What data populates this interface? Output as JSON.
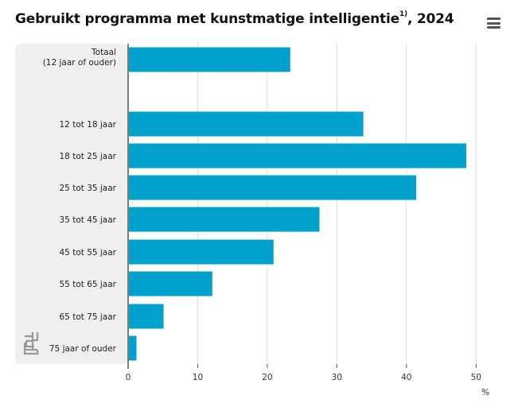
{
  "header": {
    "title": "Gebruikt programma met kunstmatige intelligentie",
    "footnote_mark": "1)",
    "title_suffix": ", 2024",
    "menu_icon": "hamburger-menu-icon"
  },
  "branding": {
    "logo_icon": "cbs-logo-icon"
  },
  "colors": {
    "bar": "#00a1cd",
    "label_panel": "#efefef",
    "grid": "#dcdcdc",
    "axis": "#555555"
  },
  "chart_data": {
    "type": "bar",
    "orientation": "horizontal",
    "categories": [
      [
        "Totaal",
        "(12 jaar of ouder)"
      ],
      [
        "12 tot 18 jaar"
      ],
      [
        "18 tot 25 jaar"
      ],
      [
        "25 tot 35 jaar"
      ],
      [
        "35 tot 45 jaar"
      ],
      [
        "45 tot 55 jaar"
      ],
      [
        "55 tot 65 jaar"
      ],
      [
        "65 tot 75 jaar"
      ],
      [
        "75 jaar of ouder"
      ]
    ],
    "values": [
      23.3,
      33.8,
      48.6,
      41.4,
      27.5,
      20.9,
      12.1,
      5.1,
      1.2
    ],
    "xlim": [
      0,
      55
    ],
    "xticks": [
      0,
      10,
      20,
      30,
      40,
      50
    ],
    "xlabel": "%",
    "grid": true
  }
}
